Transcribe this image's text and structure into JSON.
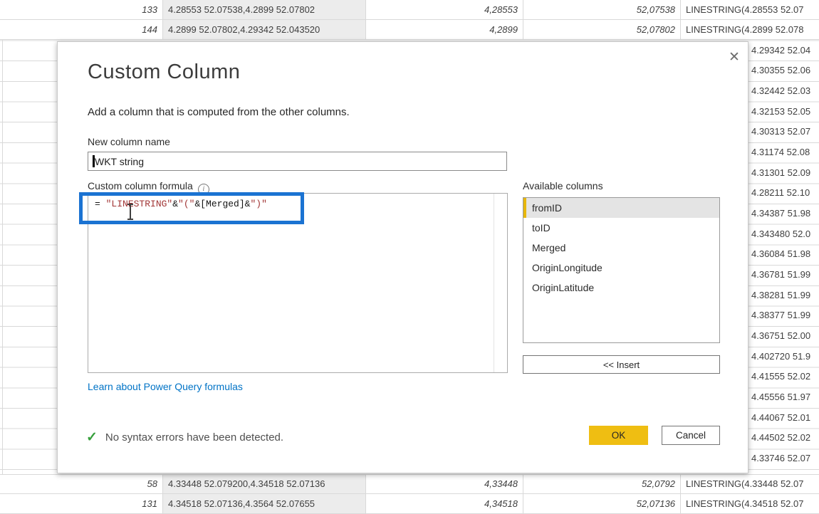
{
  "colors": {
    "accent_blue": "#1B73D2",
    "ok_yellow": "#EFBE12",
    "selection_yellow": "#E7B70C",
    "string_red": "#A13535",
    "link_blue": "#0073C6",
    "check_green": "#37A03C"
  },
  "icons": {
    "close": "✕",
    "check": "✓",
    "info": "i",
    "caret": "text-cursor",
    "ibeam": "mouse-ibeam-cursor"
  },
  "table": {
    "top_rows": [
      {
        "id": "133",
        "merged": "4.28553 52.07538,4.2899 52.07802",
        "lon": "4,28553",
        "lat": "52,07538",
        "wkt": "LINESTRING(4.28553 52.07"
      },
      {
        "id": "144",
        "merged": "4.2899 52.07802,4.29342 52.043520",
        "lon": "4,2899",
        "lat": "52,07802",
        "wkt": "LINESTRING(4.2899 52.078"
      }
    ],
    "bottom_rows": [
      {
        "id": "58",
        "merged": "4.33448 52.079200,4.34518 52.07136",
        "lon": "4,33448",
        "lat": "52,0792",
        "wkt": "LINESTRING(4.33448 52.07"
      },
      {
        "id": "131",
        "merged": "4.34518 52.07136,4.3564 52.07655",
        "lon": "4,34518",
        "lat": "52,07136",
        "wkt": "LINESTRING(4.34518 52.07"
      }
    ],
    "right_strip": [
      "4.29342 52.04",
      "4.30355 52.06",
      "4.32442 52.03",
      "4.32153 52.05",
      "4.30313 52.07",
      "4.31174 52.08",
      "4.31301 52.09",
      "4.28211 52.10",
      "4.34387 51.98",
      "4.343480 52.0",
      "4.36084 51.98",
      "4.36781 51.99",
      "4.38281 51.99",
      "4.38377 51.99",
      "4.36751 52.00",
      "4.402720 51.9",
      "4.41555 52.02",
      "4.45556 51.97",
      "4.44067 52.01",
      "4.44502 52.02",
      "4.33746 52.07"
    ]
  },
  "dialog": {
    "title": "Custom Column",
    "subtitle": "Add a column that is computed from the other columns.",
    "new_column_name_label": "New column name",
    "new_column_name_value": "WKT string",
    "formula_label": "Custom column formula",
    "formula_tokens": [
      {
        "text": "= ",
        "type": "plain"
      },
      {
        "text": "\"LINESTRING\"",
        "type": "string"
      },
      {
        "text": "&",
        "type": "plain"
      },
      {
        "text": "\"(\"",
        "type": "string"
      },
      {
        "text": "&[Merged]&",
        "type": "plain"
      },
      {
        "text": "\")\"",
        "type": "string"
      }
    ],
    "available_columns_label": "Available columns",
    "available_columns": [
      "fromID",
      "toID",
      "Merged",
      "OriginLongitude",
      "OriginLatitude"
    ],
    "selected_column": "fromID",
    "insert_button": "<< Insert",
    "link": "Learn about Power Query formulas",
    "status": "No syntax errors have been detected.",
    "ok": "OK",
    "cancel": "Cancel"
  }
}
